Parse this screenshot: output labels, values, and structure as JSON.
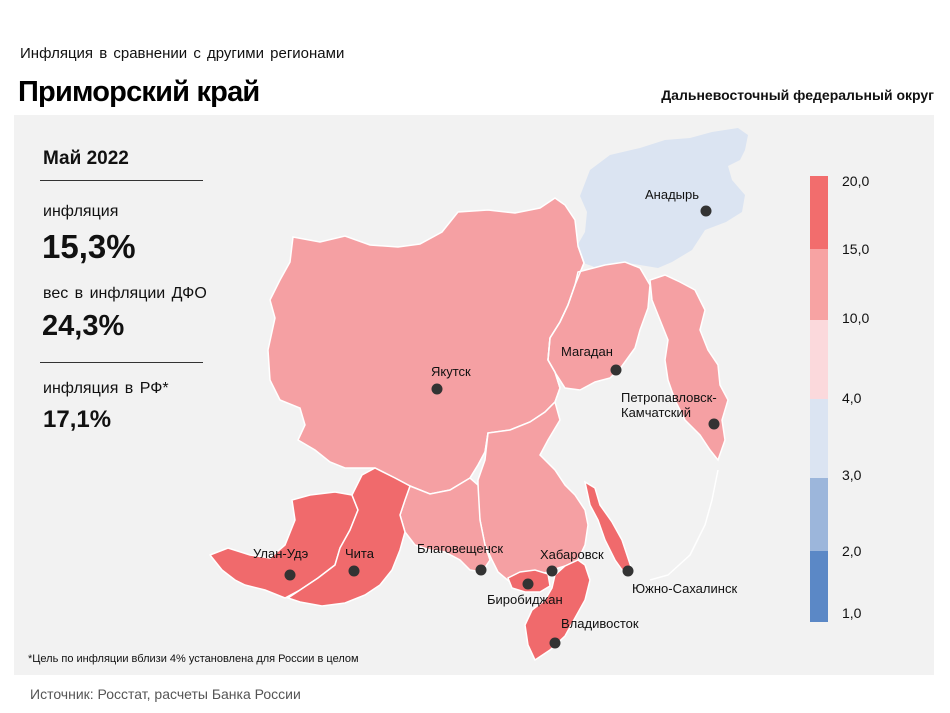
{
  "header": {
    "supertitle": "Инфляция  в сравнении  с другими  регионами",
    "region": "Приморский край",
    "district": "Дальневосточный федеральный округ"
  },
  "info": {
    "period": "Май 2022",
    "inflation_label": "инфляция",
    "inflation_value": "15,3%",
    "weight_label": "вес в инфляции  ДФО",
    "weight_value": "24,3%",
    "rf_label": "инфляция  в РФ*",
    "rf_value": "17,1%"
  },
  "map": {
    "cities": {
      "anadyr": "Анадырь",
      "yakutsk": "Якутск",
      "magadan": "Магадан",
      "petropavlovsk_1": "Петропавловск-",
      "petropavlovsk_2": "Камчатский",
      "ulan_ude": "Улан-Удэ",
      "chita": "Чита",
      "blagoveshchensk": "Благовещенск",
      "khabarovsk": "Хабаровск",
      "birobidzhan": "Биробиджан",
      "vladivostok": "Владивосток",
      "yuzhno": "Южно-Сахалинск"
    },
    "colors": {
      "band_15_20": "#f26d6d",
      "band_10_15": "#f7a3a3",
      "band_4_10": "#fbd9dc",
      "band_3_4": "#dbe4f2",
      "band_2_3": "#9cb6db",
      "band_1_2": "#5b88c6",
      "anadyr_region": "#dbe4f2",
      "dfo_main": "#f5a0a3",
      "high_regions": "#f06a6c"
    }
  },
  "legend": {
    "ticks": [
      "20,0",
      "15,0",
      "10,0",
      "4,0",
      "3,0",
      "2,0",
      "1,0"
    ]
  },
  "footnote": "*Цель по инфляции вблизи 4% установлена для России в целом",
  "source": "Источник: Росстат, расчеты  Банка  России"
}
